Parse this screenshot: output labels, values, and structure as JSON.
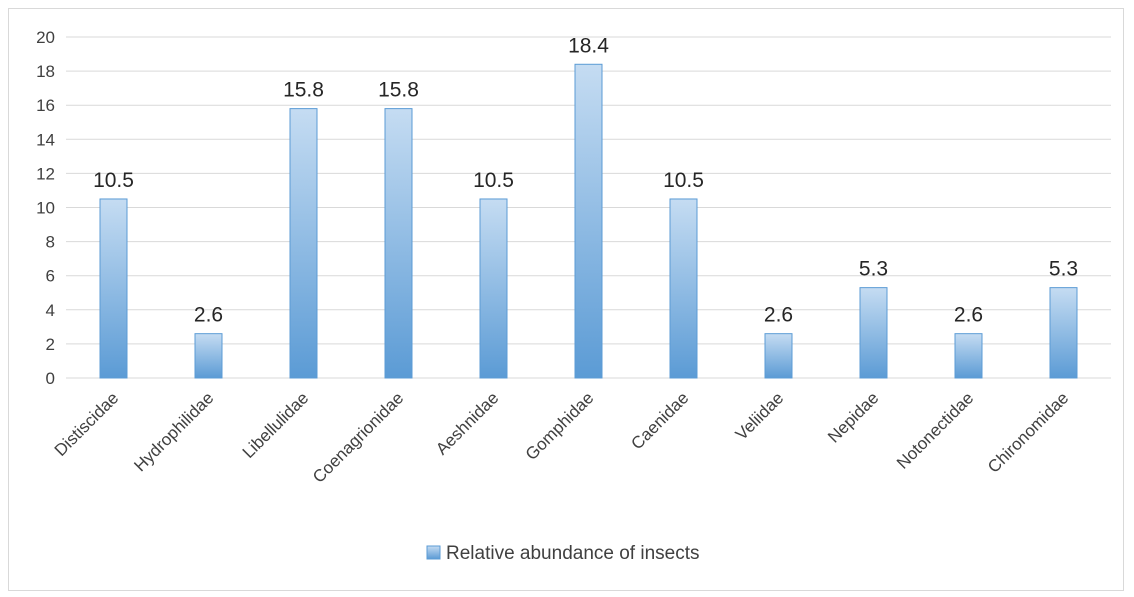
{
  "chart_data": {
    "type": "bar",
    "title": "",
    "xlabel": "",
    "ylabel": "",
    "categories": [
      "Distiscidae",
      "Hydrophilidae",
      "Libellulidae",
      "Coenagrionidae",
      "Aeshnidae",
      "Gomphidae",
      "Caenidae",
      "Veliidae",
      "Nepidae",
      "Notonectidae",
      "Chironomidae"
    ],
    "series": [
      {
        "name": "Relative abundance of insects",
        "values": [
          10.5,
          2.6,
          15.8,
          15.8,
          10.5,
          18.4,
          10.5,
          2.6,
          5.3,
          2.6,
          5.3
        ],
        "data_labels": [
          "10.5",
          "2.6",
          "15.8",
          "15.8",
          "10.5",
          "18.4",
          "10.5",
          "2.6",
          "5.3",
          "2.6",
          "5.3"
        ]
      }
    ],
    "ylim": [
      0,
      20
    ],
    "y_ticks": [
      0,
      2,
      4,
      6,
      8,
      10,
      12,
      14,
      16,
      18,
      20
    ],
    "y_tick_labels": [
      "0",
      "2",
      "4",
      "6",
      "8",
      "10",
      "12",
      "14",
      "16",
      "18",
      "20"
    ],
    "grid": true,
    "legend_position": "bottom",
    "colors": {
      "bar_top": "#c5dcf2",
      "bar_bottom": "#5b9bd5",
      "bar_border": "#5b9bd5",
      "grid": "#d9d9d9",
      "text": "#404040"
    }
  }
}
